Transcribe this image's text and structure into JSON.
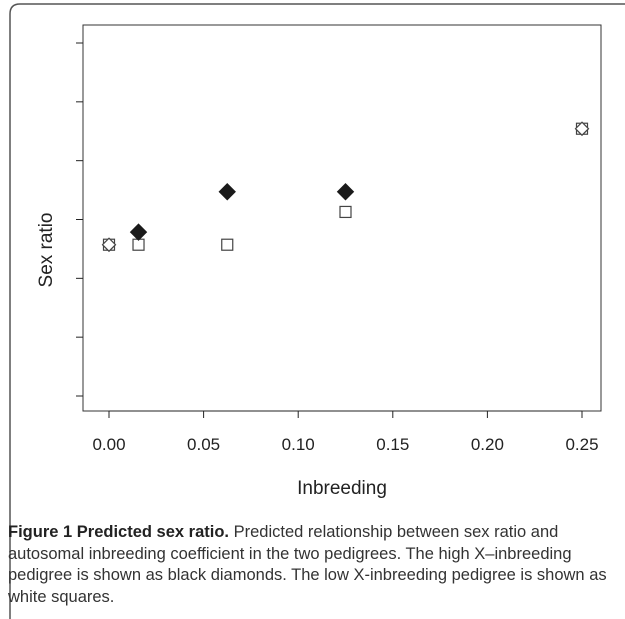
{
  "chart_data": {
    "type": "scatter",
    "xlabel": "Inbreeding",
    "ylabel": "Sex ratio",
    "xlim": [
      0.0,
      0.25
    ],
    "ylim": [
      1,
      8
    ],
    "x_ticks": [
      "0.00",
      "0.05",
      "0.10",
      "0.15",
      "0.20",
      "0.25"
    ],
    "y_tick_count": 7,
    "y_tick_labels_shown": false,
    "grid": false,
    "series": [
      {
        "marker": "diamond",
        "fill": "black",
        "points": [
          {
            "x": 0.0,
            "y": 4.0
          },
          {
            "x": 0.0156,
            "y": 4.25
          },
          {
            "x": 0.0625,
            "y": 5.05
          },
          {
            "x": 0.125,
            "y": 5.05
          },
          {
            "x": 0.25,
            "y": 6.3
          }
        ]
      },
      {
        "marker": "square",
        "fill": "white",
        "points": [
          {
            "x": 0.0,
            "y": 4.0
          },
          {
            "x": 0.0156,
            "y": 4.0
          },
          {
            "x": 0.0625,
            "y": 4.0
          },
          {
            "x": 0.125,
            "y": 4.65
          },
          {
            "x": 0.25,
            "y": 6.3
          }
        ]
      }
    ]
  },
  "caption": {
    "label": "Figure 1",
    "title": "Predicted sex ratio.",
    "text": "Predicted relationship between sex ratio and autosomal inbreeding coefficient in the two pedigrees. The high X–inbreeding pedigree is shown as black diamonds. The low X-inbreeding pedigree is shown as white squares."
  },
  "colors": {
    "frame": "#555555",
    "axis": "#222222",
    "diamond": "#1a1a1a",
    "square_edge": "#444444"
  }
}
